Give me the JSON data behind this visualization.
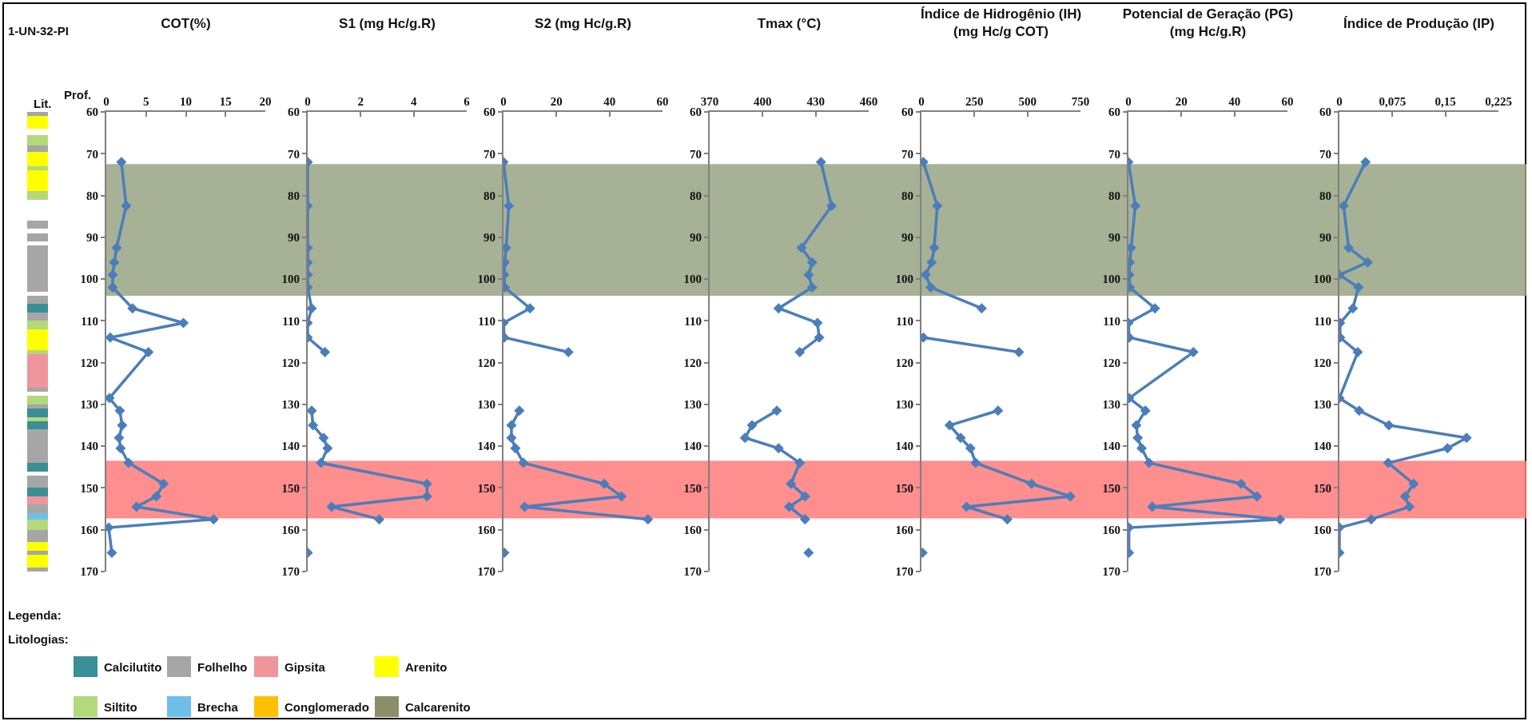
{
  "chart_data": [
    {
      "type": "line",
      "title": "COT(%)",
      "ylabel": "Prof.",
      "orientation": "horizontal",
      "marker": "diamond",
      "line_style": "solid",
      "grid": false,
      "x": [
        72,
        82.5,
        92.5,
        96,
        99,
        102,
        107,
        110.5,
        114,
        117.5,
        128.5,
        131.5,
        135,
        138,
        140.5,
        144,
        149,
        152,
        154.5,
        157.5,
        159.5,
        165.5
      ],
      "series": [
        {
          "color": "#4a7ebb",
          "values": [
            1.9,
            2.5,
            1.3,
            1.0,
            0.8,
            0.8,
            3.3,
            9.7,
            0.5,
            5.3,
            0.4,
            1.7,
            2.0,
            1.6,
            1.8,
            2.8,
            7.2,
            6.3,
            3.8,
            13.5,
            0.3,
            0.7
          ]
        }
      ],
      "xlim": [
        0,
        20
      ],
      "xticks": [
        0,
        5,
        10,
        15,
        20
      ],
      "ylim": [
        170,
        60
      ],
      "yticks": [
        60,
        70,
        80,
        90,
        100,
        110,
        120,
        130,
        140,
        150,
        160,
        170
      ],
      "bands": [
        {
          "axis": "y",
          "from": 72.5,
          "to": 104,
          "color": "#98a383"
        },
        {
          "axis": "y",
          "from": 143.5,
          "to": 157.3,
          "color": "#ff7a7a"
        }
      ]
    },
    {
      "type": "line",
      "title": "S1 (mg Hc/g.R)",
      "orientation": "horizontal",
      "marker": "diamond",
      "line_style": "solid",
      "grid": false,
      "x": [
        72,
        82.5,
        92.5,
        96,
        99,
        102,
        107,
        110.5,
        114,
        117.5,
        128.5,
        131.5,
        135,
        138,
        140.5,
        144,
        149,
        152,
        154.5,
        157.5,
        159.5,
        165.5
      ],
      "series": [
        {
          "color": "#4a7ebb",
          "values": [
            0,
            0,
            0,
            0,
            0,
            0,
            0.15,
            0,
            0,
            0.65,
            null,
            0.15,
            0.2,
            0.6,
            0.75,
            0.5,
            4.5,
            4.5,
            0.9,
            2.7,
            null,
            0
          ]
        }
      ],
      "xlim": [
        0,
        6
      ],
      "xticks": [
        0,
        2,
        4,
        6
      ],
      "ylim": [
        170,
        60
      ],
      "yticks": [
        60,
        70,
        80,
        90,
        100,
        110,
        120,
        130,
        140,
        150,
        160,
        170
      ],
      "bands": [
        {
          "axis": "y",
          "from": 72.5,
          "to": 104,
          "color": "#98a383"
        },
        {
          "axis": "y",
          "from": 143.5,
          "to": 157.3,
          "color": "#ff7a7a"
        }
      ]
    },
    {
      "type": "line",
      "title": "S2 (mg Hc/g.R)",
      "orientation": "horizontal",
      "marker": "diamond",
      "line_style": "solid",
      "grid": false,
      "x": [
        72,
        82.5,
        92.5,
        96,
        99,
        102,
        107,
        110.5,
        114,
        117.5,
        128.5,
        131.5,
        135,
        138,
        140.5,
        144,
        149,
        152,
        154.5,
        157.5,
        159.5,
        165.5
      ],
      "series": [
        {
          "color": "#4a7ebb",
          "values": [
            0,
            2,
            1,
            0.5,
            0.3,
            0.5,
            10,
            0,
            0.3,
            24.5,
            null,
            6,
            3,
            3,
            4.5,
            7.5,
            38,
            44.5,
            8,
            54.5,
            null,
            0.3
          ]
        }
      ],
      "xlim": [
        0,
        60
      ],
      "xticks": [
        0,
        20,
        40,
        60
      ],
      "ylim": [
        170,
        60
      ],
      "yticks": [
        60,
        70,
        80,
        90,
        100,
        110,
        120,
        130,
        140,
        150,
        160,
        170
      ],
      "bands": [
        {
          "axis": "y",
          "from": 72.5,
          "to": 104,
          "color": "#98a383"
        },
        {
          "axis": "y",
          "from": 143.5,
          "to": 157.3,
          "color": "#ff7a7a"
        }
      ]
    },
    {
      "type": "line",
      "title": "Tmax (°C)",
      "orientation": "horizontal",
      "marker": "diamond",
      "line_style": "solid",
      "grid": false,
      "x": [
        72,
        82.5,
        92.5,
        96,
        99,
        102,
        107,
        110.5,
        114,
        117.5,
        128.5,
        131.5,
        135,
        138,
        140.5,
        144,
        149,
        152,
        154.5,
        157.5,
        159.5,
        165.5
      ],
      "series": [
        {
          "color": "#4a7ebb",
          "values": [
            433,
            439,
            422,
            428,
            426,
            428,
            409,
            431,
            432,
            421,
            null,
            408,
            394,
            390,
            409,
            421,
            416,
            424,
            415,
            424,
            null,
            426
          ]
        }
      ],
      "xlim": [
        370,
        460
      ],
      "xticks": [
        370,
        400,
        430,
        460
      ],
      "ylim": [
        170,
        60
      ],
      "yticks": [
        60,
        70,
        80,
        90,
        100,
        110,
        120,
        130,
        140,
        150,
        160,
        170
      ],
      "bands": [
        {
          "axis": "y",
          "from": 72.5,
          "to": 104,
          "color": "#98a383"
        },
        {
          "axis": "y",
          "from": 143.5,
          "to": 157.3,
          "color": "#ff7a7a"
        }
      ]
    },
    {
      "type": "line",
      "title": "Índice de Hidrogênio (IH)\n(mg Hc/g COT)",
      "orientation": "horizontal",
      "marker": "diamond",
      "line_style": "solid",
      "grid": false,
      "x": [
        72,
        82.5,
        92.5,
        96,
        99,
        102,
        107,
        110.5,
        114,
        117.5,
        128.5,
        131.5,
        135,
        138,
        140.5,
        144,
        149,
        152,
        154.5,
        157.5,
        159.5,
        165.5
      ],
      "series": [
        {
          "color": "#4a7ebb",
          "values": [
            9,
            75,
            60,
            48,
            20,
            44,
            284,
            null,
            9,
            460,
            null,
            361,
            133,
            185,
            231,
            256,
            519,
            702,
            213,
            405,
            null,
            5
          ]
        }
      ],
      "xlim": [
        0,
        750
      ],
      "xticks": [
        0,
        250,
        500,
        750
      ],
      "ylim": [
        170,
        60
      ],
      "yticks": [
        60,
        70,
        80,
        90,
        100,
        110,
        120,
        130,
        140,
        150,
        160,
        170
      ],
      "bands": [
        {
          "axis": "y",
          "from": 72.5,
          "to": 104,
          "color": "#98a383"
        },
        {
          "axis": "y",
          "from": 143.5,
          "to": 157.3,
          "color": "#ff7a7a"
        }
      ]
    },
    {
      "type": "line",
      "title": "Potencial de Geração (PG)\n(mg Hc/g.R)",
      "orientation": "horizontal",
      "marker": "diamond",
      "line_style": "solid",
      "grid": false,
      "x": [
        72,
        82.5,
        92.5,
        96,
        99,
        102,
        107,
        110.5,
        114,
        117.5,
        128.5,
        131.5,
        135,
        138,
        140.5,
        144,
        149,
        152,
        154.5,
        157.5,
        159.5,
        165.5
      ],
      "series": [
        {
          "color": "#4a7ebb",
          "values": [
            0,
            2.6,
            1,
            0.5,
            0.3,
            0.5,
            10,
            0,
            0.3,
            24.5,
            0.3,
            6.4,
            3,
            3.5,
            5,
            7.8,
            42.5,
            48.5,
            9,
            57.2,
            0.2,
            0.2
          ]
        }
      ],
      "xlim": [
        0,
        60
      ],
      "xticks": [
        0,
        20,
        40,
        60
      ],
      "ylim": [
        170,
        60
      ],
      "yticks": [
        60,
        70,
        80,
        90,
        100,
        110,
        120,
        130,
        140,
        150,
        160,
        170
      ],
      "bands": [
        {
          "axis": "y",
          "from": 72.5,
          "to": 104,
          "color": "#98a383"
        },
        {
          "axis": "y",
          "from": 143.5,
          "to": 157.3,
          "color": "#ff7a7a"
        }
      ]
    },
    {
      "type": "line",
      "title": "Índice de Produção (IP)",
      "orientation": "horizontal",
      "marker": "diamond",
      "line_style": "solid",
      "grid": false,
      "x": [
        72,
        82.5,
        92.5,
        96,
        99,
        102,
        107,
        110.5,
        114,
        117.5,
        128.5,
        131.5,
        135,
        138,
        140.5,
        144,
        149,
        152,
        154.5,
        157.5,
        159.5,
        165.5
      ],
      "series": [
        {
          "color": "#4a7ebb",
          "values": [
            0.037,
            0.006,
            0.013,
            0.04,
            0,
            0.027,
            0.019,
            0.001,
            0.001,
            0.026,
            0,
            0.028,
            0.07,
            0.18,
            0.153,
            0.069,
            0.105,
            0.093,
            0.099,
            0.045,
            0,
            0
          ]
        }
      ],
      "xlim": [
        0,
        0.225
      ],
      "xticks": [
        0,
        {
          "value": 0.075,
          "label": "0,075"
        },
        {
          "value": 0.15,
          "label": "0,15"
        },
        {
          "value": 0.225,
          "label": "0,225"
        }
      ],
      "ylim": [
        170,
        60
      ],
      "yticks": [
        60,
        70,
        80,
        90,
        100,
        110,
        120,
        130,
        140,
        150,
        160,
        170
      ],
      "bands": [
        {
          "axis": "y",
          "from": 72.5,
          "to": 104,
          "color": "#98a383"
        },
        {
          "axis": "y",
          "from": 143.5,
          "to": 157.3,
          "color": "#ff7a7a"
        }
      ]
    },
    {
      "type": "other",
      "title": "Legenda:",
      "subtitle": "Litologias:",
      "annotations": [
        "1-UN-32-PI",
        "Lit."
      ],
      "series": [
        {
          "name": "Calcilutito",
          "color": "#3a8e96"
        },
        {
          "name": "Folhelho",
          "color": "#a6a6a6"
        },
        {
          "name": "Gipsita",
          "color": "#f0959b"
        },
        {
          "name": "Arenito",
          "color": "#ffff00"
        },
        {
          "name": "Siltito",
          "color": "#b3d97a"
        },
        {
          "name": "Brecha",
          "color": "#6cc0ea"
        },
        {
          "name": "Conglomerado",
          "color": "#ffc000"
        },
        {
          "name": "Calcarenito",
          "color": "#8e8f6a"
        }
      ]
    }
  ]
}
